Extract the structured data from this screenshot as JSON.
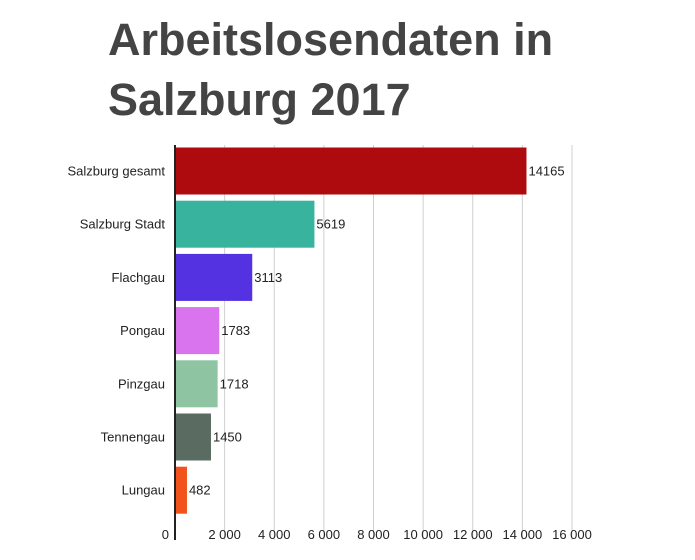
{
  "title": "Arbeitslosendaten in Salzburg 2017",
  "chart_data": {
    "type": "bar",
    "orientation": "horizontal",
    "title": "Arbeitslosendaten in Salzburg 2017",
    "categories": [
      "Salzburg gesamt",
      "Salzburg Stadt",
      "Flachgau",
      "Pongau",
      "Pinzgau",
      "Tennengau",
      "Lungau"
    ],
    "values": [
      14165,
      5619,
      3113,
      1783,
      1718,
      1450,
      482
    ],
    "value_labels": [
      "14165",
      "5619",
      "3113",
      "1783",
      "1718",
      "1450",
      "482"
    ],
    "colors": [
      "#ad0b0e",
      "#38b49e",
      "#5431e1",
      "#d974ee",
      "#8ec4a2",
      "#5a6c62",
      "#f2521c"
    ],
    "xlim": [
      0,
      16000
    ],
    "x_ticks": [
      0,
      2000,
      4000,
      6000,
      8000,
      10000,
      12000,
      14000,
      16000
    ],
    "x_tick_labels": [
      "0",
      "2 000",
      "4 000",
      "6 000",
      "8 000",
      "10 000",
      "12 000",
      "14 000",
      "16 000"
    ],
    "grid": true
  }
}
